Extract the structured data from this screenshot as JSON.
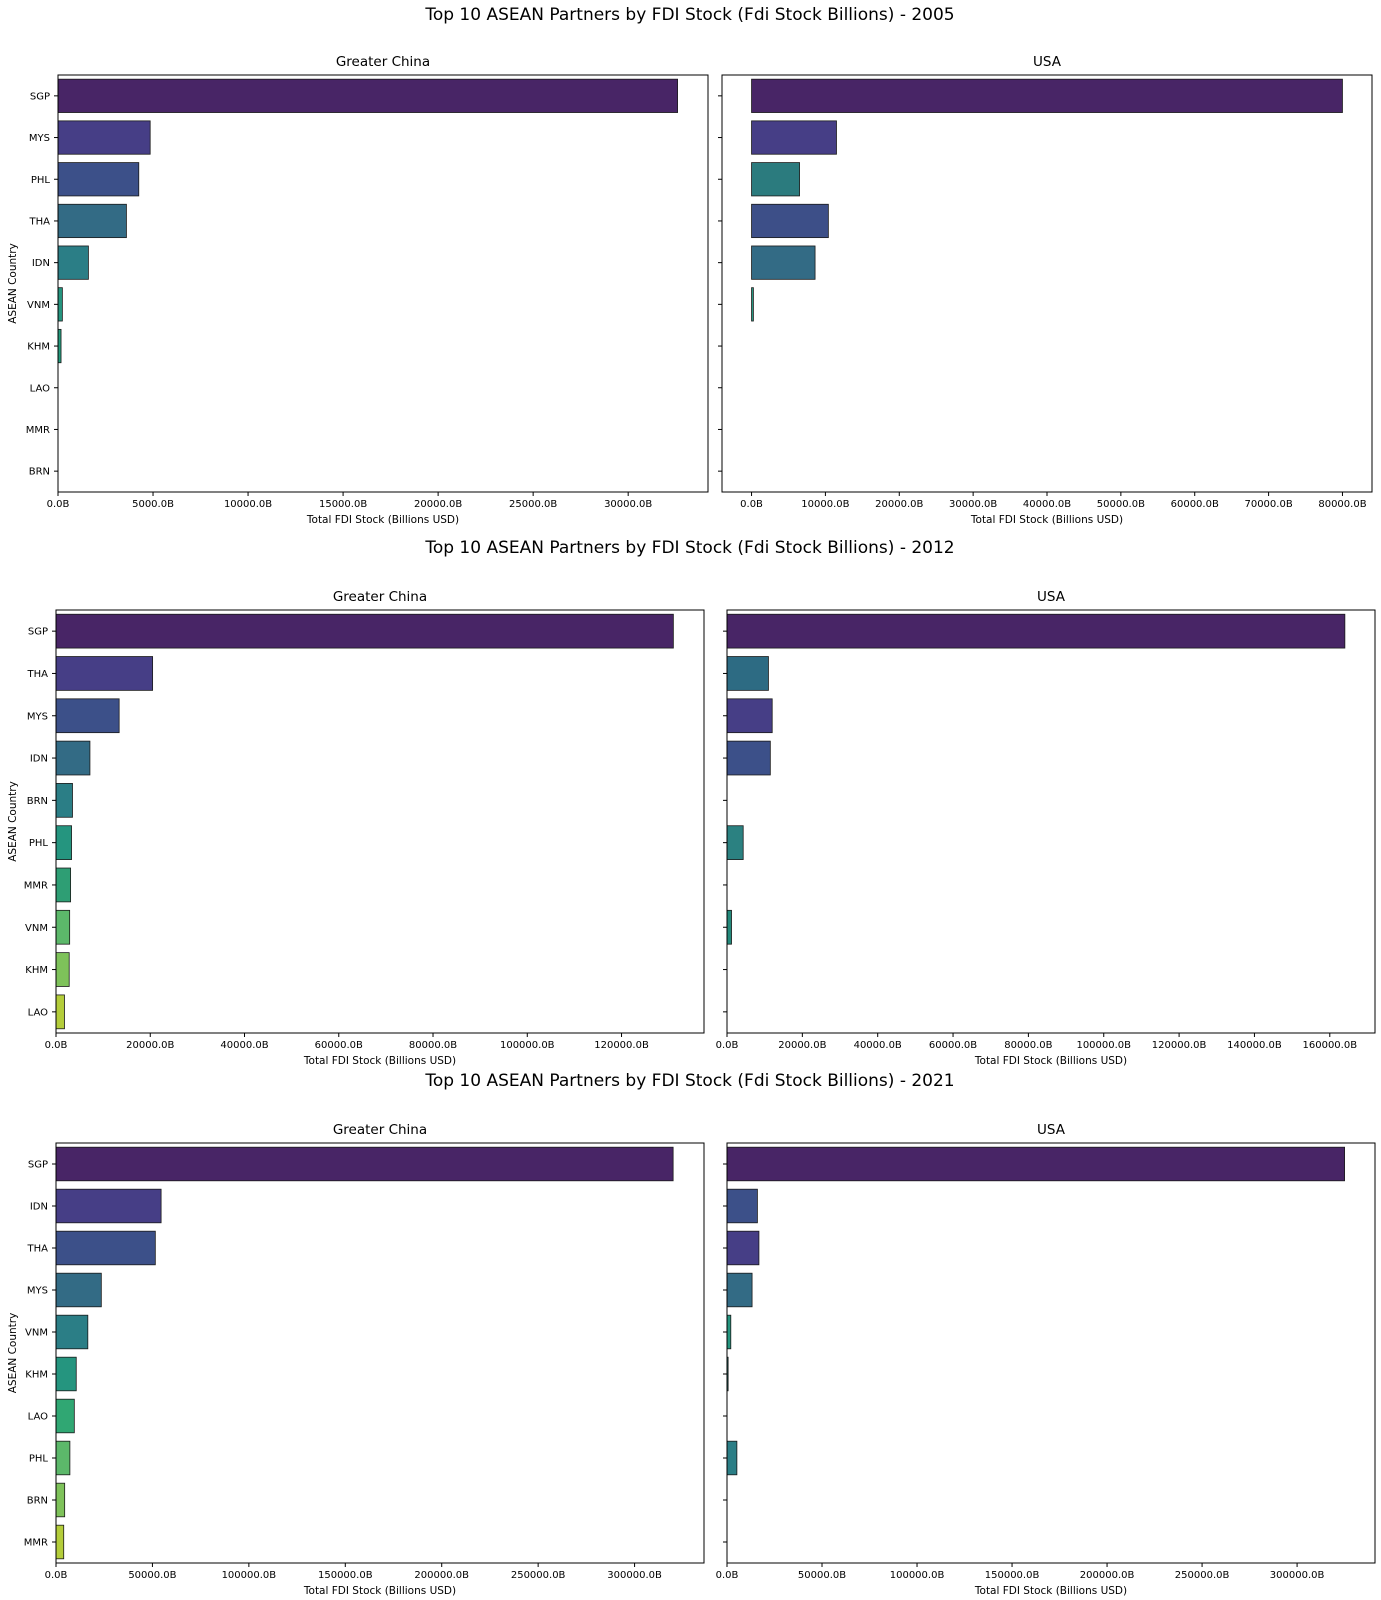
{
  "chart_data": [
    {
      "type": "bar",
      "orientation": "horizontal",
      "figure_title": "Top 10 ASEAN Partners by FDI Stock (Fdi Stock Billions) - 2005",
      "panels": [
        {
          "title": "Greater China",
          "xlabel": "Total FDI Stock (Billions USD)",
          "ylabel": "ASEAN Country",
          "xlim": [
            0,
            34200
          ],
          "xticks": [
            0,
            5000,
            10000,
            15000,
            20000,
            25000,
            30000
          ],
          "xtick_labels": [
            "0.0B",
            "5000.0B",
            "10000.0B",
            "15000.0B",
            "20000.0B",
            "25000.0B",
            "30000.0B"
          ],
          "categories": [
            "SGP",
            "MYS",
            "PHL",
            "THA",
            "IDN",
            "VNM",
            "KHM",
            "LAO",
            "MMR",
            "BRN"
          ],
          "values": [
            32600,
            4850,
            4250,
            3600,
            1600,
            230,
            160,
            0,
            0,
            0
          ],
          "colors": [
            "#482566",
            "#463e86",
            "#3c5089",
            "#336b85",
            "#2b7e86",
            "#25957f",
            "#239a7d",
            "#25a27a",
            "#2eab76",
            "#3fb76d"
          ]
        },
        {
          "title": "USA",
          "xlabel": "Total FDI Stock (Billions USD)",
          "ylabel": "",
          "xlim": [
            -4000,
            84000
          ],
          "xticks": [
            0,
            10000,
            20000,
            30000,
            40000,
            50000,
            60000,
            70000,
            80000
          ],
          "xtick_labels": [
            "0.0B",
            "10000.0B",
            "20000.0B",
            "30000.0B",
            "40000.0B",
            "50000.0B",
            "60000.0B",
            "70000.0B",
            "80000.0B"
          ],
          "categories": [
            "SGP",
            "MYS",
            "PHL",
            "THA",
            "IDN",
            "VNM",
            "KHM",
            "LAO",
            "MMR",
            "BRN"
          ],
          "values": [
            80000,
            11500,
            6500,
            10400,
            8600,
            250,
            0,
            0,
            0,
            0
          ],
          "colors": [
            "#482566",
            "#463e86",
            "#2b7b7e",
            "#3d4f88",
            "#336b85",
            "#25957f",
            "#239a7d",
            "#25a27a",
            "#2eab76",
            "#3fb76d"
          ]
        }
      ]
    },
    {
      "type": "bar",
      "orientation": "horizontal",
      "figure_title": "Top 10 ASEAN Partners by FDI Stock (Fdi Stock Billions) - 2012",
      "panels": [
        {
          "title": "Greater China",
          "xlabel": "Total FDI Stock (Billions USD)",
          "ylabel": "ASEAN Country",
          "xlim": [
            0,
            137500
          ],
          "xticks": [
            0,
            20000,
            40000,
            60000,
            80000,
            100000,
            120000
          ],
          "xtick_labels": [
            "0.0B",
            "20000.0B",
            "40000.0B",
            "60000.0B",
            "80000.0B",
            "100000.0B",
            "120000.0B"
          ],
          "categories": [
            "SGP",
            "THA",
            "MYS",
            "IDN",
            "BRN",
            "PHL",
            "MMR",
            "VNM",
            "KHM",
            "LAO"
          ],
          "values": [
            131000,
            20500,
            13400,
            7200,
            3500,
            3300,
            3100,
            2900,
            2800,
            1800
          ],
          "colors": [
            "#482566",
            "#463e86",
            "#3c5089",
            "#336b85",
            "#2b7e86",
            "#25957f",
            "#2e9e74",
            "#5cb86a",
            "#7ec25a",
            "#b4cd3a"
          ]
        },
        {
          "title": "USA",
          "xlabel": "Total FDI Stock (Billions USD)",
          "ylabel": "",
          "xlim": [
            0,
            172000
          ],
          "xticks": [
            0,
            20000,
            40000,
            60000,
            80000,
            100000,
            120000,
            140000,
            160000
          ],
          "xtick_labels": [
            "0.0B",
            "20000.0B",
            "40000.0B",
            "60000.0B",
            "80000.0B",
            "100000.0B",
            "120000.0B",
            "140000.0B",
            "160000.0B"
          ],
          "categories": [
            "SGP",
            "THA",
            "MYS",
            "IDN",
            "BRN",
            "PHL",
            "MMR",
            "VNM",
            "KHM",
            "LAO"
          ],
          "values": [
            164000,
            11000,
            12000,
            11500,
            0,
            4300,
            0,
            1200,
            0,
            0
          ],
          "colors": [
            "#482566",
            "#2d6b83",
            "#463e86",
            "#3c5089",
            "#2b7e86",
            "#2b8181",
            "#2e9e74",
            "#23897b",
            "#7ec25a",
            "#b4cd3a"
          ]
        }
      ]
    },
    {
      "type": "bar",
      "orientation": "horizontal",
      "figure_title": "Top 10 ASEAN Partners by FDI Stock (Fdi Stock Billions) - 2021",
      "panels": [
        {
          "title": "Greater China",
          "xlabel": "Total FDI Stock (Billions USD)",
          "ylabel": "ASEAN Country",
          "xlim": [
            0,
            336000
          ],
          "xticks": [
            0,
            50000,
            100000,
            150000,
            200000,
            250000,
            300000
          ],
          "xtick_labels": [
            "0.0B",
            "50000.0B",
            "100000.0B",
            "150000.0B",
            "200000.0B",
            "250000.0B",
            "300000.0B"
          ],
          "categories": [
            "SGP",
            "IDN",
            "THA",
            "MYS",
            "VNM",
            "KHM",
            "LAO",
            "PHL",
            "BRN",
            "MMR"
          ],
          "values": [
            320000,
            54500,
            51500,
            23500,
            16500,
            10500,
            9500,
            7200,
            4500,
            4000
          ],
          "colors": [
            "#482566",
            "#463e86",
            "#3c5089",
            "#336b85",
            "#2b7e86",
            "#25957f",
            "#30a773",
            "#5cb86a",
            "#7ec25a",
            "#b4cd3a"
          ]
        },
        {
          "title": "USA",
          "xlabel": "Total FDI Stock (Billions USD)",
          "ylabel": "",
          "xlim": [
            0,
            341000
          ],
          "xticks": [
            0,
            50000,
            100000,
            150000,
            200000,
            250000,
            300000
          ],
          "xtick_labels": [
            "0.0B",
            "50000.0B",
            "100000.0B",
            "150000.0B",
            "200000.0B",
            "250000.0B",
            "300000.0B"
          ],
          "categories": [
            "SGP",
            "IDN",
            "THA",
            "MYS",
            "VNM",
            "KHM",
            "LAO",
            "PHL",
            "BRN",
            "MMR"
          ],
          "values": [
            325000,
            16000,
            16800,
            13200,
            2000,
            600,
            0,
            5200,
            0,
            0
          ],
          "colors": [
            "#482566",
            "#3c5089",
            "#463e86",
            "#336b85",
            "#25957f",
            "#2a8a84",
            "#30a773",
            "#2b7e86",
            "#7ec25a",
            "#b4cd3a"
          ]
        }
      ]
    }
  ]
}
